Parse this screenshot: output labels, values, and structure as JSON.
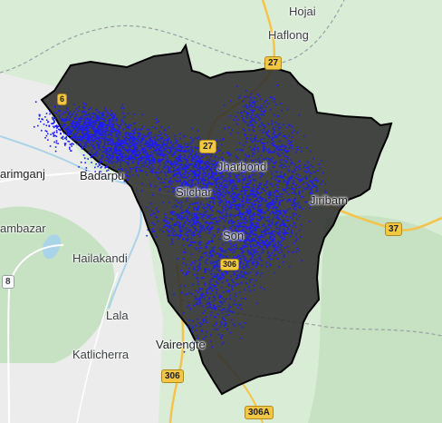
{
  "map": {
    "colors": {
      "land": "#d9ecd6",
      "hills": "#c6e2c2",
      "plain": "#ececec",
      "water": "#a9d3e8",
      "road_major": "#f6c34a",
      "road_minor": "#ffffff",
      "border": "#9aa0a6",
      "region_fill": "#2e2e2e",
      "region_stroke": "#000000",
      "points": "#1a1aff"
    },
    "places": [
      {
        "id": "hojai",
        "label": "Hojai"
      },
      {
        "id": "haflong",
        "label": "Haflong"
      },
      {
        "id": "karimganj",
        "label": "arimganj"
      },
      {
        "id": "badarpur",
        "label": "Badarpu"
      },
      {
        "id": "silchar",
        "label": "Silchar"
      },
      {
        "id": "lakhipur",
        "label": "Jharbond"
      },
      {
        "id": "jiribam",
        "label": "Jiribam"
      },
      {
        "id": "sonai",
        "label": "Son"
      },
      {
        "id": "ambazar",
        "label": "ambazar"
      },
      {
        "id": "hailakandi",
        "label": "Hailakandi"
      },
      {
        "id": "lala",
        "label": "Lala"
      },
      {
        "id": "katlicherra",
        "label": "Katlicherra"
      },
      {
        "id": "vairengte",
        "label": "Vairengte"
      }
    ],
    "shields": [
      {
        "id": "nh27-top",
        "label": "27"
      },
      {
        "id": "nh27-mid",
        "label": "27"
      },
      {
        "id": "nh37",
        "label": "37"
      },
      {
        "id": "nh8",
        "label": "8"
      },
      {
        "id": "nh306",
        "label": "306"
      },
      {
        "id": "nh306a",
        "label": "306A"
      },
      {
        "id": "nh6",
        "label": "6"
      },
      {
        "id": "nh306-inner",
        "label": "306"
      }
    ]
  }
}
